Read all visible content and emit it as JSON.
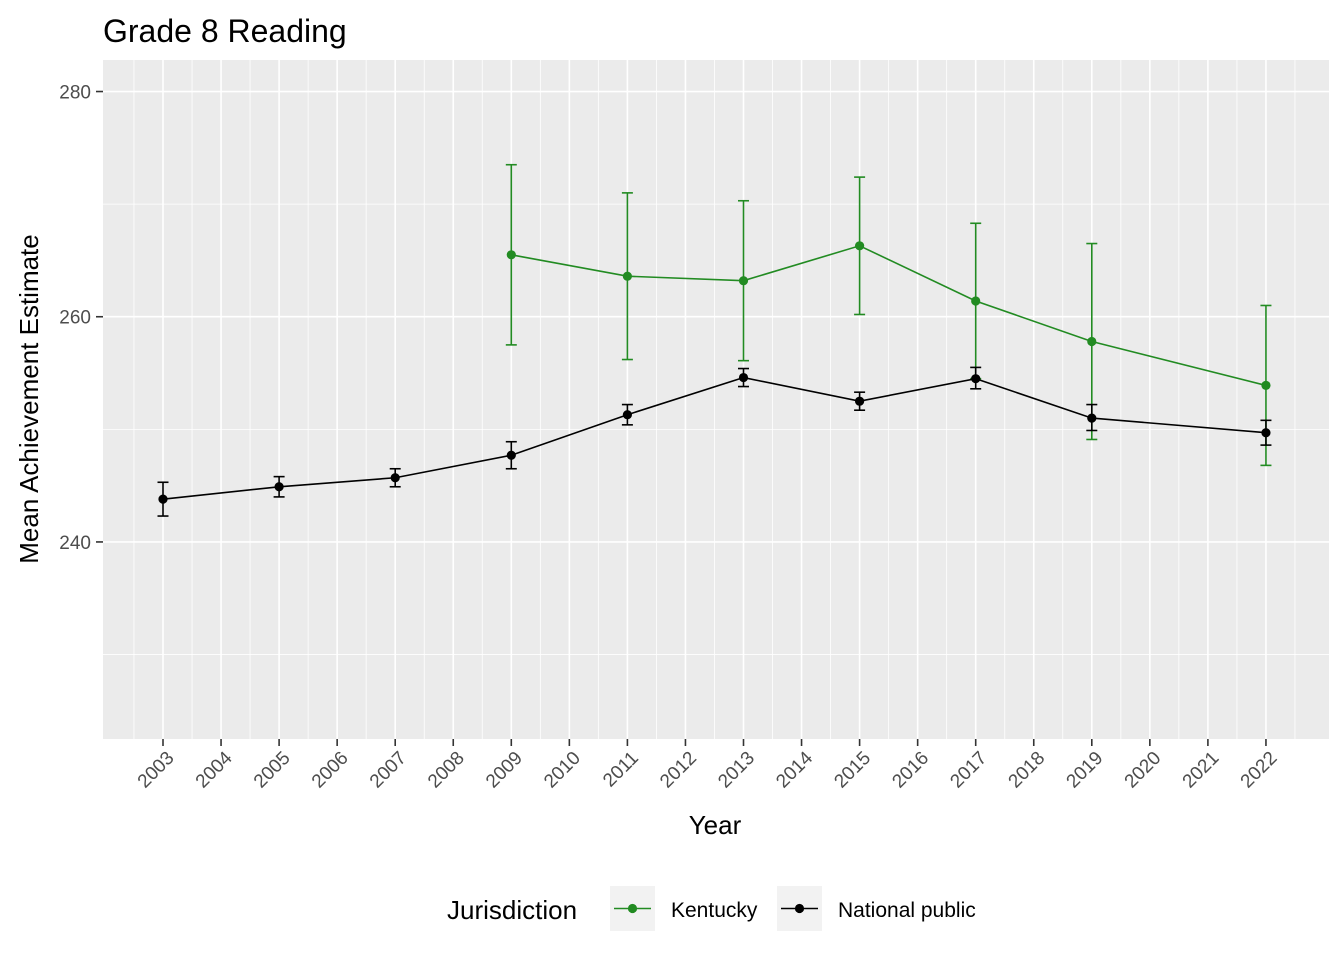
{
  "chart_data": {
    "type": "line",
    "title": "Grade 8 Reading",
    "xlabel": "Year",
    "ylabel": "Mean Achievement Estimate",
    "categories": [
      "2003",
      "2004",
      "2005",
      "2006",
      "2007",
      "2008",
      "2009",
      "2010",
      "2011",
      "2012",
      "2013",
      "2014",
      "2015",
      "2016",
      "2017",
      "2018",
      "2019",
      "2020",
      "2021",
      "2022"
    ],
    "y_ticks": [
      "240",
      "260",
      "280"
    ],
    "ylim": [
      222.5,
      282.8
    ],
    "grid": true,
    "error_bars": true,
    "legend": {
      "title": "Jurisdiction",
      "position": "bottom"
    },
    "series": [
      {
        "name": "Kentucky",
        "color": "#228b22",
        "points": [
          {
            "x": "2009",
            "y": 265.5,
            "lo": 257.5,
            "hi": 273.5
          },
          {
            "x": "2011",
            "y": 263.6,
            "lo": 256.2,
            "hi": 271.0
          },
          {
            "x": "2013",
            "y": 263.2,
            "lo": 256.1,
            "hi": 270.3
          },
          {
            "x": "2015",
            "y": 266.3,
            "lo": 260.2,
            "hi": 272.4
          },
          {
            "x": "2017",
            "y": 261.4,
            "lo": 254.5,
            "hi": 268.3
          },
          {
            "x": "2019",
            "y": 257.8,
            "lo": 249.1,
            "hi": 266.5
          },
          {
            "x": "2022",
            "y": 253.9,
            "lo": 246.8,
            "hi": 261.0
          }
        ]
      },
      {
        "name": "National public",
        "color": "#000000",
        "points": [
          {
            "x": "2003",
            "y": 243.8,
            "lo": 242.3,
            "hi": 245.3
          },
          {
            "x": "2005",
            "y": 244.9,
            "lo": 244.0,
            "hi": 245.8
          },
          {
            "x": "2007",
            "y": 245.7,
            "lo": 244.9,
            "hi": 246.5
          },
          {
            "x": "2009",
            "y": 247.7,
            "lo": 246.5,
            "hi": 248.9
          },
          {
            "x": "2011",
            "y": 251.3,
            "lo": 250.4,
            "hi": 252.2
          },
          {
            "x": "2013",
            "y": 254.6,
            "lo": 253.8,
            "hi": 255.4
          },
          {
            "x": "2015",
            "y": 252.5,
            "lo": 251.7,
            "hi": 253.3
          },
          {
            "x": "2017",
            "y": 254.5,
            "lo": 253.6,
            "hi": 255.5
          },
          {
            "x": "2019",
            "y": 251.0,
            "lo": 249.9,
            "hi": 252.2
          },
          {
            "x": "2022",
            "y": 249.7,
            "lo": 248.6,
            "hi": 250.8
          }
        ]
      }
    ]
  }
}
